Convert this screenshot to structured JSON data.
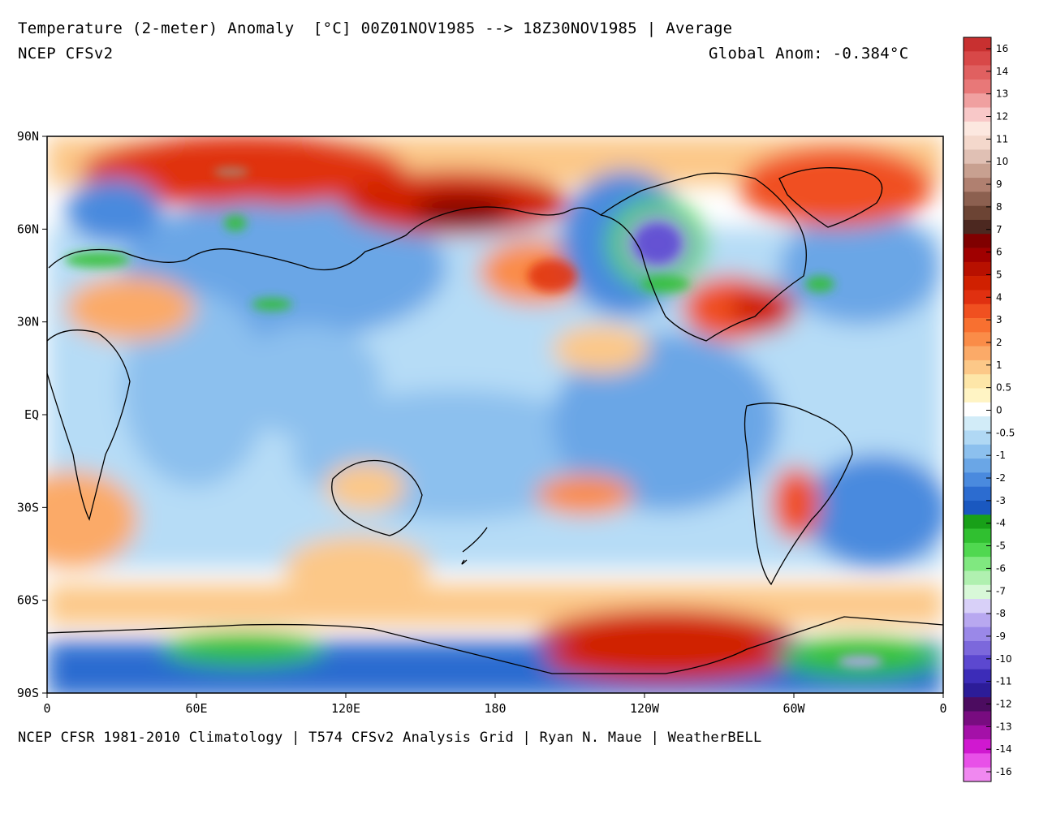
{
  "header": {
    "title": "Temperature (2-meter) Anomaly  [°C] 00Z01NOV1985 --> 18Z30NOV1985 | Average",
    "model": "NCEP CFSv2",
    "global_anom": "Global Anom: -0.384°C"
  },
  "footer": "NCEP CFSR 1981-2010 Climatology | T574 CFSv2 Analysis Grid | Ryan N. Maue | WeatherBELL",
  "axes": {
    "lat_labels": [
      "90N",
      "60N",
      "30N",
      "EQ",
      "30S",
      "60S",
      "90S"
    ],
    "lon_labels": [
      "0",
      "60E",
      "120E",
      "180",
      "120W",
      "60W",
      "0"
    ]
  },
  "colorbar": {
    "labels": [
      "16",
      "14",
      "13",
      "12",
      "11",
      "10",
      "9",
      "8",
      "7",
      "6",
      "5",
      "4",
      "3",
      "2",
      "1",
      "0.5",
      "0",
      "-0.5",
      "-1",
      "-2",
      "-3",
      "-4",
      "-5",
      "-6",
      "-7",
      "-8",
      "-9",
      "-10",
      "-11",
      "-12",
      "-13",
      "-14",
      "-16"
    ],
    "colors": [
      "#c83030",
      "#d84848",
      "#e06060",
      "#e87878",
      "#f0a0a0",
      "#f8c8c8",
      "#fce8e0",
      "#f4d8cc",
      "#e0c0b4",
      "#c8a090",
      "#b08070",
      "#8c6050",
      "#6c4434",
      "#4c2820",
      "#800000",
      "#a00000",
      "#b81000",
      "#d02000",
      "#e03010",
      "#f05020",
      "#f87030",
      "#fa8c48",
      "#fbaa68",
      "#fcc888",
      "#fde6a8",
      "#fff4c4",
      "#ffffff",
      "#d2ecf8",
      "#b0d8f4",
      "#8cc0ee",
      "#6aa6e6",
      "#4a8ade",
      "#2c6cd0",
      "#1a58c0",
      "#18a018",
      "#30c030",
      "#50d850",
      "#80e880",
      "#b0f0b0",
      "#d8f8d8",
      "#d8d0f8",
      "#b8a8f0",
      "#9a88e8",
      "#7c68dc",
      "#5c48d0",
      "#3c2cb8",
      "#2c1c98",
      "#4c0c60",
      "#780c80",
      "#a410a8",
      "#d018d0",
      "#e850e8",
      "#f088f0"
    ]
  }
}
